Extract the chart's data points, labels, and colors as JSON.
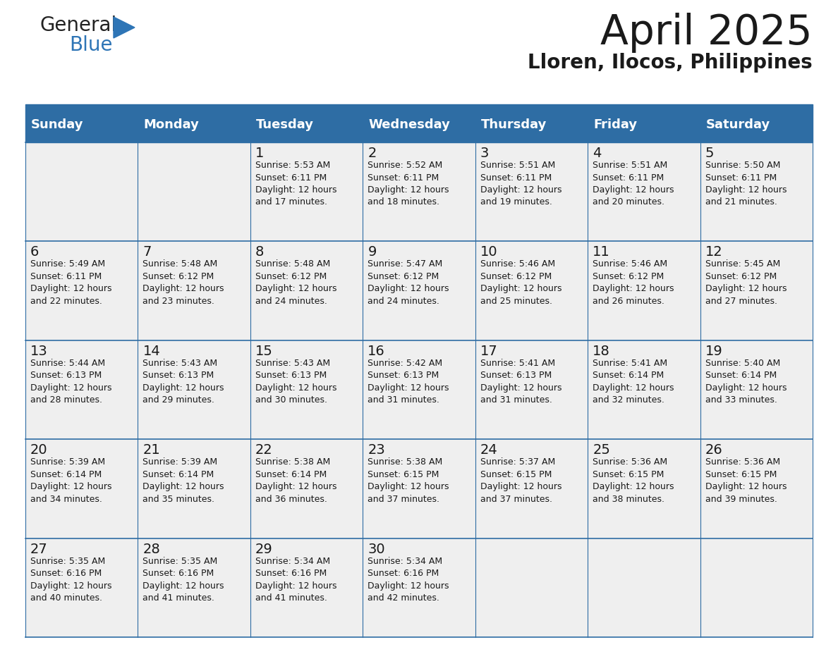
{
  "title": "April 2025",
  "subtitle": "Lloren, Ilocos, Philippines",
  "header_bg": "#2E6DA4",
  "header_fg": "#FFFFFF",
  "cell_bg": "#EFEFEF",
  "border_color": "#2E6DA4",
  "text_color": "#1a1a1a",
  "day_headers": [
    "Sunday",
    "Monday",
    "Tuesday",
    "Wednesday",
    "Thursday",
    "Friday",
    "Saturday"
  ],
  "logo_color1": "#1a1a1a",
  "logo_color2": "#2E75B6",
  "calendar": [
    [
      {
        "day": "",
        "text": ""
      },
      {
        "day": "",
        "text": ""
      },
      {
        "day": "1",
        "text": "Sunrise: 5:53 AM\nSunset: 6:11 PM\nDaylight: 12 hours\nand 17 minutes."
      },
      {
        "day": "2",
        "text": "Sunrise: 5:52 AM\nSunset: 6:11 PM\nDaylight: 12 hours\nand 18 minutes."
      },
      {
        "day": "3",
        "text": "Sunrise: 5:51 AM\nSunset: 6:11 PM\nDaylight: 12 hours\nand 19 minutes."
      },
      {
        "day": "4",
        "text": "Sunrise: 5:51 AM\nSunset: 6:11 PM\nDaylight: 12 hours\nand 20 minutes."
      },
      {
        "day": "5",
        "text": "Sunrise: 5:50 AM\nSunset: 6:11 PM\nDaylight: 12 hours\nand 21 minutes."
      }
    ],
    [
      {
        "day": "6",
        "text": "Sunrise: 5:49 AM\nSunset: 6:11 PM\nDaylight: 12 hours\nand 22 minutes."
      },
      {
        "day": "7",
        "text": "Sunrise: 5:48 AM\nSunset: 6:12 PM\nDaylight: 12 hours\nand 23 minutes."
      },
      {
        "day": "8",
        "text": "Sunrise: 5:48 AM\nSunset: 6:12 PM\nDaylight: 12 hours\nand 24 minutes."
      },
      {
        "day": "9",
        "text": "Sunrise: 5:47 AM\nSunset: 6:12 PM\nDaylight: 12 hours\nand 24 minutes."
      },
      {
        "day": "10",
        "text": "Sunrise: 5:46 AM\nSunset: 6:12 PM\nDaylight: 12 hours\nand 25 minutes."
      },
      {
        "day": "11",
        "text": "Sunrise: 5:46 AM\nSunset: 6:12 PM\nDaylight: 12 hours\nand 26 minutes."
      },
      {
        "day": "12",
        "text": "Sunrise: 5:45 AM\nSunset: 6:12 PM\nDaylight: 12 hours\nand 27 minutes."
      }
    ],
    [
      {
        "day": "13",
        "text": "Sunrise: 5:44 AM\nSunset: 6:13 PM\nDaylight: 12 hours\nand 28 minutes."
      },
      {
        "day": "14",
        "text": "Sunrise: 5:43 AM\nSunset: 6:13 PM\nDaylight: 12 hours\nand 29 minutes."
      },
      {
        "day": "15",
        "text": "Sunrise: 5:43 AM\nSunset: 6:13 PM\nDaylight: 12 hours\nand 30 minutes."
      },
      {
        "day": "16",
        "text": "Sunrise: 5:42 AM\nSunset: 6:13 PM\nDaylight: 12 hours\nand 31 minutes."
      },
      {
        "day": "17",
        "text": "Sunrise: 5:41 AM\nSunset: 6:13 PM\nDaylight: 12 hours\nand 31 minutes."
      },
      {
        "day": "18",
        "text": "Sunrise: 5:41 AM\nSunset: 6:14 PM\nDaylight: 12 hours\nand 32 minutes."
      },
      {
        "day": "19",
        "text": "Sunrise: 5:40 AM\nSunset: 6:14 PM\nDaylight: 12 hours\nand 33 minutes."
      }
    ],
    [
      {
        "day": "20",
        "text": "Sunrise: 5:39 AM\nSunset: 6:14 PM\nDaylight: 12 hours\nand 34 minutes."
      },
      {
        "day": "21",
        "text": "Sunrise: 5:39 AM\nSunset: 6:14 PM\nDaylight: 12 hours\nand 35 minutes."
      },
      {
        "day": "22",
        "text": "Sunrise: 5:38 AM\nSunset: 6:14 PM\nDaylight: 12 hours\nand 36 minutes."
      },
      {
        "day": "23",
        "text": "Sunrise: 5:38 AM\nSunset: 6:15 PM\nDaylight: 12 hours\nand 37 minutes."
      },
      {
        "day": "24",
        "text": "Sunrise: 5:37 AM\nSunset: 6:15 PM\nDaylight: 12 hours\nand 37 minutes."
      },
      {
        "day": "25",
        "text": "Sunrise: 5:36 AM\nSunset: 6:15 PM\nDaylight: 12 hours\nand 38 minutes."
      },
      {
        "day": "26",
        "text": "Sunrise: 5:36 AM\nSunset: 6:15 PM\nDaylight: 12 hours\nand 39 minutes."
      }
    ],
    [
      {
        "day": "27",
        "text": "Sunrise: 5:35 AM\nSunset: 6:16 PM\nDaylight: 12 hours\nand 40 minutes."
      },
      {
        "day": "28",
        "text": "Sunrise: 5:35 AM\nSunset: 6:16 PM\nDaylight: 12 hours\nand 41 minutes."
      },
      {
        "day": "29",
        "text": "Sunrise: 5:34 AM\nSunset: 6:16 PM\nDaylight: 12 hours\nand 41 minutes."
      },
      {
        "day": "30",
        "text": "Sunrise: 5:34 AM\nSunset: 6:16 PM\nDaylight: 12 hours\nand 42 minutes."
      },
      {
        "day": "",
        "text": ""
      },
      {
        "day": "",
        "text": ""
      },
      {
        "day": "",
        "text": ""
      }
    ]
  ]
}
